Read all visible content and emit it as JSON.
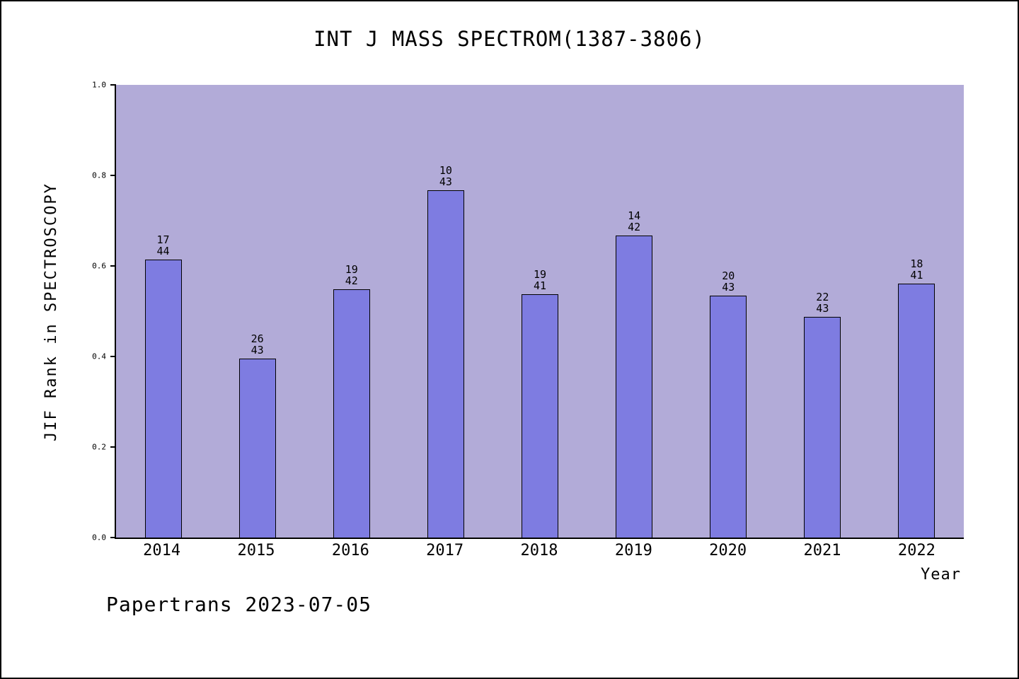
{
  "title": "INT J MASS SPECTROM(1387-3806)",
  "footer": "Papertrans 2023-07-05",
  "chart_data": {
    "type": "bar",
    "title": "INT J MASS SPECTROM(1387-3806)",
    "xlabel": "Year",
    "ylabel": "JIF Rank in SPECTROSCOPY",
    "ylim": [
      0.0,
      1.0
    ],
    "ytick_labels": [
      "0.0",
      "0.2",
      "0.4",
      "0.6",
      "0.8",
      "1.0"
    ],
    "grid": false,
    "legend": "none",
    "annotation_format": "rank above total, shown over each bar",
    "categories": [
      "2014",
      "2015",
      "2016",
      "2017",
      "2018",
      "2019",
      "2020",
      "2021",
      "2022"
    ],
    "bars": [
      {
        "year": "2014",
        "rank": 17,
        "total": 44,
        "value": 0.614
      },
      {
        "year": "2015",
        "rank": 26,
        "total": 43,
        "value": 0.395
      },
      {
        "year": "2016",
        "rank": 19,
        "total": 42,
        "value": 0.548
      },
      {
        "year": "2017",
        "rank": 10,
        "total": 43,
        "value": 0.767
      },
      {
        "year": "2018",
        "rank": 19,
        "total": 41,
        "value": 0.537
      },
      {
        "year": "2019",
        "rank": 14,
        "total": 42,
        "value": 0.667
      },
      {
        "year": "2020",
        "rank": 20,
        "total": 43,
        "value": 0.535
      },
      {
        "year": "2021",
        "rank": 22,
        "total": 43,
        "value": 0.488
      },
      {
        "year": "2022",
        "rank": 18,
        "total": 41,
        "value": 0.561
      }
    ],
    "colors": {
      "bar_fill": "#7e7ce1",
      "bar_border": "#000000",
      "plot_background": "#b2abd8",
      "axis": "#000000",
      "text": "#000000",
      "page_background": "#ffffff"
    }
  }
}
